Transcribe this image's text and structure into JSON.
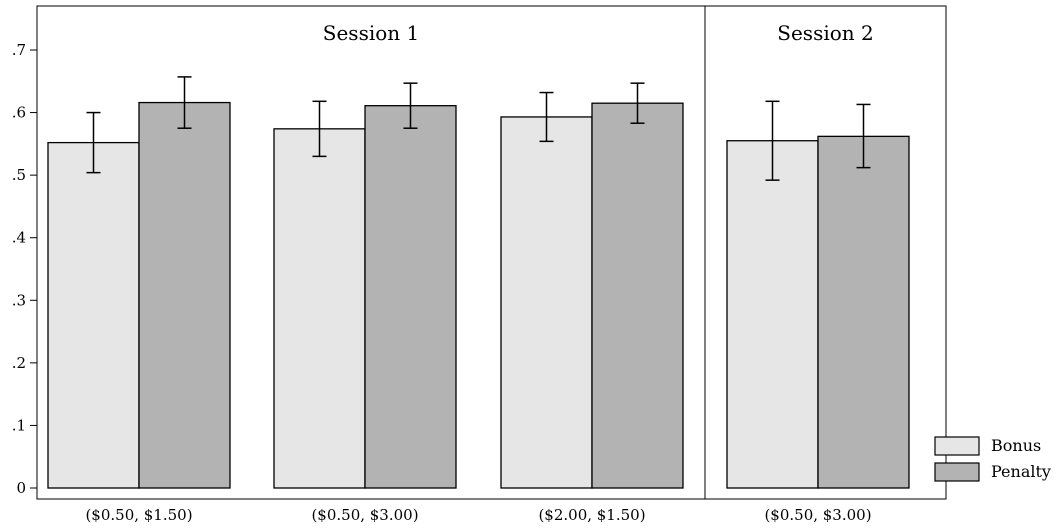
{
  "chart_data": {
    "type": "bar",
    "title": "",
    "xlabel": "",
    "ylabel": "",
    "ylim": [
      0,
      0.72
    ],
    "yticks": [
      {
        "value": 0,
        "label": "0"
      },
      {
        "value": 0.1,
        "label": ".1"
      },
      {
        "value": 0.2,
        "label": ".2"
      },
      {
        "value": 0.3,
        "label": ".3"
      },
      {
        "value": 0.4,
        "label": ".4"
      },
      {
        "value": 0.5,
        "label": ".5"
      },
      {
        "value": 0.6,
        "label": ".6"
      },
      {
        "value": 0.7,
        "label": ".7"
      }
    ],
    "grid": false,
    "legend_position": "bottom-right",
    "panels": [
      {
        "label": "Session 1",
        "categories": [
          "($0.50, $1.50)",
          "($0.50, $3.00)",
          "($2.00, $1.50)"
        ]
      },
      {
        "label": "Session 2",
        "categories": [
          "($0.50, $3.00)"
        ]
      }
    ],
    "series": [
      {
        "name": "Bonus",
        "color": "#e6e6e6",
        "values": [
          0.552,
          0.574,
          0.593,
          0.555
        ],
        "ci_low": [
          0.504,
          0.53,
          0.554,
          0.492
        ],
        "ci_high": [
          0.6,
          0.618,
          0.632,
          0.618
        ]
      },
      {
        "name": "Penalty",
        "color": "#b3b3b3",
        "values": [
          0.616,
          0.611,
          0.615,
          0.562
        ],
        "ci_low": [
          0.575,
          0.575,
          0.583,
          0.512
        ],
        "ci_high": [
          0.657,
          0.647,
          0.647,
          0.613
        ]
      }
    ]
  }
}
